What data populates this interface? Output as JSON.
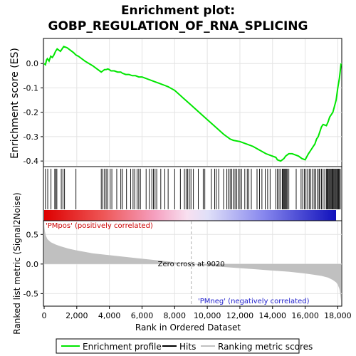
{
  "chart_data": {
    "type": "line",
    "title_line1": "Enrichment plot:",
    "title_line2": "GOBP_REGULATION_OF_RNA_SPLICING",
    "ylabel_top": "Enrichment score (ES)",
    "ylabel_bottom": "Ranked list metric (Signal2Noise)",
    "xlabel": "Rank in Ordered Dataset",
    "x_ticks": [
      "0",
      "2,000",
      "4,000",
      "6,000",
      "8,000",
      "10,000",
      "12,000",
      "14,000",
      "16,000",
      "18,000"
    ],
    "x_tick_values": [
      0,
      2000,
      4000,
      6000,
      8000,
      10000,
      12000,
      14000,
      16000,
      18000
    ],
    "xlim": [
      0,
      18200
    ],
    "es_yticks": [
      "0.0",
      "-0.1",
      "-0.2",
      "-0.3",
      "-0.4"
    ],
    "es_ytick_values": [
      0.0,
      -0.1,
      -0.2,
      -0.3,
      -0.4
    ],
    "es_ylim": [
      -0.42,
      0.1
    ],
    "metric_yticks": [
      "0.5",
      "0.0",
      "-0.5"
    ],
    "metric_ytick_values": [
      0.5,
      0.0,
      -0.5
    ],
    "metric_ylim": [
      -0.7,
      0.72
    ],
    "zero_cross_label": "Zero cross at 9020",
    "zero_cross": 9020,
    "pos_label": "'PMpos' (positively correlated)",
    "neg_label": "'PMneg' (negatively correlated)",
    "legend": [
      "Enrichment profile",
      "Hits",
      "Ranking metric scores"
    ],
    "colors": {
      "profile": "#00e600",
      "hits": "#000000",
      "metric_fill": "#c0c0c0",
      "pos_text": "#cc0000",
      "neg_text": "#2222cc",
      "zero_line": "#b0b0b0"
    },
    "series": [
      {
        "name": "Enrichment profile",
        "x": [
          0,
          80,
          150,
          200,
          300,
          400,
          500,
          600,
          700,
          800,
          900,
          1000,
          1100,
          1200,
          1400,
          1600,
          1800,
          1950,
          2100,
          2500,
          3000,
          3500,
          3600,
          3700,
          3800,
          3900,
          4000,
          4100,
          4300,
          4500,
          4700,
          4800,
          5000,
          5200,
          5400,
          5600,
          5800,
          6000,
          6200,
          6400,
          6600,
          6800,
          7000,
          7200,
          7400,
          7600,
          8000,
          8500,
          9000,
          9500,
          10000,
          10500,
          11000,
          11400,
          11600,
          12000,
          12400,
          12800,
          13200,
          13600,
          14000,
          14200,
          14300,
          14500,
          14600,
          14700,
          14800,
          14900,
          15000,
          15200,
          15400,
          15600,
          15800,
          16000,
          16200,
          16300,
          16400,
          16500,
          16600,
          16700,
          16800,
          16900,
          17000,
          17100,
          17300,
          17400,
          17500,
          17700,
          17900,
          18000,
          18100,
          18150,
          18200
        ],
        "y": [
          0.0,
          -0.005,
          0.015,
          0.02,
          0.01,
          0.03,
          0.025,
          0.035,
          0.05,
          0.06,
          0.055,
          0.05,
          0.06,
          0.07,
          0.065,
          0.055,
          0.045,
          0.035,
          0.03,
          0.01,
          -0.01,
          -0.035,
          -0.03,
          -0.025,
          -0.025,
          -0.022,
          -0.025,
          -0.03,
          -0.03,
          -0.035,
          -0.035,
          -0.04,
          -0.045,
          -0.045,
          -0.05,
          -0.05,
          -0.055,
          -0.055,
          -0.06,
          -0.065,
          -0.07,
          -0.075,
          -0.08,
          -0.085,
          -0.09,
          -0.095,
          -0.11,
          -0.14,
          -0.17,
          -0.2,
          -0.23,
          -0.26,
          -0.29,
          -0.31,
          -0.315,
          -0.32,
          -0.33,
          -0.34,
          -0.355,
          -0.37,
          -0.38,
          -0.385,
          -0.395,
          -0.4,
          -0.395,
          -0.39,
          -0.38,
          -0.375,
          -0.37,
          -0.37,
          -0.375,
          -0.38,
          -0.39,
          -0.395,
          -0.37,
          -0.36,
          -0.35,
          -0.34,
          -0.33,
          -0.31,
          -0.3,
          -0.28,
          -0.26,
          -0.25,
          -0.255,
          -0.24,
          -0.22,
          -0.2,
          -0.15,
          -0.1,
          -0.06,
          -0.03,
          0.0
        ]
      },
      {
        "name": "Ranking metric scores",
        "x": [
          0,
          50,
          100,
          200,
          400,
          700,
          1000,
          1500,
          2000,
          3000,
          4000,
          5000,
          6000,
          7000,
          8000,
          9020,
          10000,
          11000,
          12000,
          13000,
          14000,
          15000,
          16000,
          16500,
          17000,
          17400,
          17700,
          17900,
          18000,
          18100,
          18150,
          18200
        ],
        "y": [
          0.66,
          0.55,
          0.48,
          0.42,
          0.37,
          0.33,
          0.3,
          0.26,
          0.23,
          0.18,
          0.15,
          0.12,
          0.09,
          0.06,
          0.03,
          0.0,
          -0.03,
          -0.05,
          -0.07,
          -0.09,
          -0.11,
          -0.13,
          -0.16,
          -0.18,
          -0.2,
          -0.23,
          -0.27,
          -0.31,
          -0.35,
          -0.42,
          -0.5,
          -0.62
        ]
      }
    ],
    "hits": [
      80,
      220,
      420,
      650,
      720,
      780,
      1050,
      1150,
      1250,
      1950,
      3500,
      3600,
      3700,
      3800,
      3900,
      4050,
      4150,
      4450,
      4700,
      4800,
      5050,
      5300,
      5450,
      5550,
      5700,
      5800,
      5900,
      6250,
      6450,
      6600,
      6700,
      6800,
      6900,
      7150,
      7400,
      7600,
      8000,
      8350,
      8600,
      8700,
      8800,
      8900,
      9000,
      9150,
      9450,
      9750,
      9850,
      10250,
      10450,
      10550,
      10700,
      11000,
      11200,
      11300,
      11400,
      11500,
      11600,
      11700,
      11800,
      11900,
      12000,
      12100,
      12300,
      12450,
      12550,
      12700,
      13050,
      13200,
      13350,
      13550,
      13700,
      13850,
      14200,
      14300,
      14400,
      14500,
      14600,
      14650,
      14700,
      14750,
      14800,
      14850,
      14900,
      15000,
      15450,
      15750,
      15850,
      15950,
      16050,
      16150,
      16250,
      16350,
      16450,
      16550,
      16650,
      16750,
      16850,
      16900,
      17000,
      17100,
      17200,
      17300,
      17350,
      17400,
      17450,
      17500,
      17550,
      17600,
      17650,
      17700,
      17750,
      17800,
      17850,
      17900,
      17950,
      18000,
      18050,
      18100,
      18150
    ]
  }
}
